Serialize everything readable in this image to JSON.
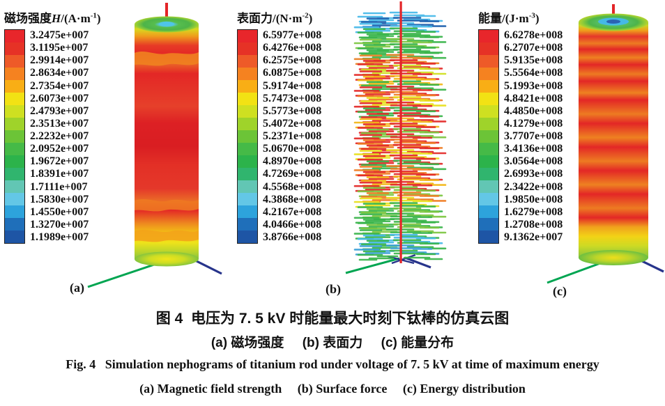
{
  "palette": [
    "#e8262b",
    "#e63226",
    "#ee5a28",
    "#f58220",
    "#f9ae15",
    "#f2e214",
    "#cfe021",
    "#9fd32a",
    "#6cc437",
    "#45ba47",
    "#2cb34b",
    "#30b56e",
    "#62c6b4",
    "#63c7e6",
    "#2da3dc",
    "#1f6fba",
    "#1e55a5"
  ],
  "panels": [
    {
      "label": "(a)",
      "legend": {
        "title_cn": "磁场强度",
        "title_var": "H",
        "title_mid": "/(A·m",
        "title_sup": "-1",
        "title_end": ")",
        "values": [
          "3.2475e+007",
          "3.1195e+007",
          "2.9914e+007",
          "2.8634e+007",
          "2.7354e+007",
          "2.6073e+007",
          "2.4793e+007",
          "2.3513e+007",
          "2.2232e+007",
          "2.0952e+007",
          "1.9672e+007",
          "1.8391e+007",
          "1.7111e+007",
          "1.5830e+007",
          "1.4550e+007",
          "1.3270e+007",
          "1.1989e+007"
        ]
      }
    },
    {
      "label": "(b)",
      "legend": {
        "title_cn": "表面力",
        "title_var": "",
        "title_mid": "/(N·m",
        "title_sup": "-2",
        "title_end": ")",
        "values": [
          "6.5977e+008",
          "6.4276e+008",
          "6.2575e+008",
          "6.0875e+008",
          "5.9174e+008",
          "5.7473e+008",
          "5.5773e+008",
          "5.4072e+008",
          "5.2371e+008",
          "5.0670e+008",
          "4.8970e+008",
          "4.7269e+008",
          "4.5568e+008",
          "4.3868e+008",
          "4.2167e+008",
          "4.0466e+008",
          "3.8766e+008"
        ]
      }
    },
    {
      "label": "(c)",
      "legend": {
        "title_cn": "能量",
        "title_var": "",
        "title_mid": "/(J·m",
        "title_sup": "-3",
        "title_end": ")",
        "values": [
          "6.6278e+008",
          "6.2707e+008",
          "5.9135e+008",
          "5.5564e+008",
          "5.1993e+008",
          "4.8421e+008",
          "4.4850e+008",
          "4.1279e+008",
          "3.7707e+008",
          "3.4136e+008",
          "3.0564e+008",
          "2.6993e+008",
          "2.3422e+008",
          "1.9850e+008",
          "1.6279e+008",
          "1.2708e+008",
          "9.1362e+007"
        ]
      }
    }
  ],
  "caption": {
    "cn_line1": "图 4  电压为 7. 5 kV 时能量最大时刻下钛棒的仿真云图",
    "cn_line2": "(a) 磁场强度     (b) 表面力     (c) 能量分布",
    "en_line1": "Fig. 4   Simulation nephograms of titanium rod under voltage of 7. 5 kV at time of maximum energy",
    "en_line2": "(a) Magnetic field strength     (b) Surface force     (c) Energy distribution"
  },
  "figures": {
    "axis_colors": {
      "x_green": "#00a551",
      "y_blue": "#27348b",
      "z_red": "#e32528"
    },
    "rod_b": {
      "row_colors": [
        "#45b8e8",
        "#1d5fae",
        "#45b8e8",
        "#38b44a",
        "#38b44a",
        "#7cc63f",
        "#38b44a",
        "#38b44a",
        "#e88023",
        "#e32726",
        "#cfe01e",
        "#e32726",
        "#f2b615",
        "#38b44a",
        "#e32726",
        "#ef7c22",
        "#e8df1b",
        "#e32726",
        "#38b44a",
        "#e32726",
        "#f2b615",
        "#e32726",
        "#7cc63f",
        "#e32726",
        "#ef7c22",
        "#e32726",
        "#e8df1b",
        "#e32726",
        "#38b44a",
        "#ef7c22",
        "#e32726",
        "#f2b615",
        "#e32726",
        "#7cc63f",
        "#ef7c22",
        "#e8df1b",
        "#38b44a",
        "#7cc63f",
        "#38b44a",
        "#38b44a",
        "#7cc63f",
        "#38b44a",
        "#45b8e8",
        "#38b44a",
        "#3a9fd8",
        "#38b44a"
      ]
    }
  },
  "chart_data": [
    {
      "type": "heatmap",
      "title": "磁场强度H/(A·m-1)",
      "legend_position": "left",
      "scale_values": [
        "3.2475e+007",
        "3.1195e+007",
        "2.9914e+007",
        "2.8634e+007",
        "2.7354e+007",
        "2.6073e+007",
        "2.4793e+007",
        "2.3513e+007",
        "2.2232e+007",
        "2.0952e+007",
        "1.9672e+007",
        "1.8391e+007",
        "1.7111e+007",
        "1.5830e+007",
        "1.4550e+007",
        "1.3270e+007",
        "1.1989e+007"
      ],
      "colormap": "rainbow red-to-blue",
      "subject": "3D nephogram of magnetic field strength on titanium rod"
    },
    {
      "type": "heatmap",
      "title": "表面力/(N·m-2)",
      "legend_position": "left",
      "scale_values": [
        "6.5977e+008",
        "6.4276e+008",
        "6.2575e+008",
        "6.0875e+008",
        "5.9174e+008",
        "5.7473e+008",
        "5.5773e+008",
        "5.4072e+008",
        "5.2371e+008",
        "5.0670e+008",
        "4.8970e+008",
        "4.7269e+008",
        "4.5568e+008",
        "4.3868e+008",
        "4.2167e+008",
        "4.0466e+008",
        "3.8766e+008"
      ],
      "colormap": "rainbow red-to-blue",
      "subject": "3D vector nephogram of surface force on titanium rod"
    },
    {
      "type": "heatmap",
      "title": "能量/(J·m-3)",
      "legend_position": "left",
      "scale_values": [
        "6.6278e+008",
        "6.2707e+008",
        "5.9135e+008",
        "5.5564e+008",
        "5.1993e+008",
        "4.8421e+008",
        "4.4850e+008",
        "4.1279e+008",
        "3.7707e+008",
        "3.4136e+008",
        "3.0564e+008",
        "2.6993e+008",
        "2.3422e+008",
        "1.9850e+008",
        "1.6279e+008",
        "1.2708e+008",
        "9.1362e+007"
      ],
      "colormap": "rainbow red-to-blue",
      "subject": "3D nephogram of energy distribution on titanium rod"
    }
  ]
}
